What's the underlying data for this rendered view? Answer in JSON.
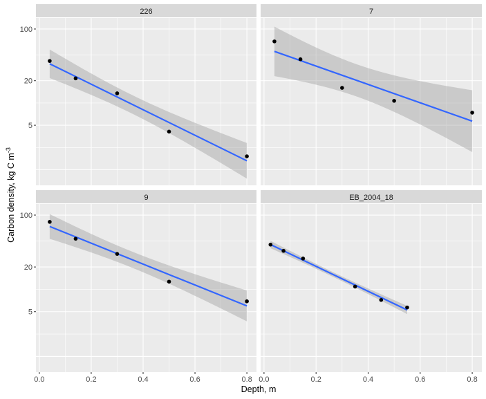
{
  "chart_data": {
    "type": "scatter",
    "subtype": "faceted scatter with linear fit and 95% confidence band (log10 y axis)",
    "xlabel": "Depth, m",
    "ylabel": "Carbon density, kg C m",
    "ylabel_superscript": "-3",
    "y_scale": "log10",
    "y_ticks": [
      100,
      20,
      5
    ],
    "y_tick_labels": [
      "100",
      "20",
      "5"
    ],
    "x_ticks": [
      0.0,
      0.2,
      0.4,
      0.6,
      0.8
    ],
    "x_tick_labels": [
      "0.0",
      "0.2",
      "0.4",
      "0.6",
      "0.8"
    ],
    "xlim": [
      -0.013,
      0.837
    ],
    "ylim": [
      0.77,
      141
    ],
    "grid": true,
    "point_color": "#000000",
    "line_color": "#3366ff",
    "band_color": "#999999",
    "panel_bg": "#ebebeb",
    "strip_bg": "#d9d9d9",
    "facets": [
      {
        "label": "226",
        "x": [
          0.04,
          0.14,
          0.3,
          0.5,
          0.8
        ],
        "y": [
          37,
          21.5,
          13.5,
          4.1,
          1.9
        ]
      },
      {
        "label": "7",
        "x": [
          0.04,
          0.14,
          0.3,
          0.5,
          0.8
        ],
        "y": [
          68,
          39,
          16,
          10.7,
          7.4
        ]
      },
      {
        "label": "9",
        "x": [
          0.04,
          0.14,
          0.3,
          0.5,
          0.8
        ],
        "y": [
          81,
          48,
          30,
          12.7,
          6.9
        ]
      },
      {
        "label": "EB_2004_18",
        "x": [
          0.025,
          0.075,
          0.15,
          0.35,
          0.45,
          0.55
        ],
        "y": [
          40,
          33,
          26,
          10.9,
          7.2,
          5.7
        ]
      }
    ]
  }
}
